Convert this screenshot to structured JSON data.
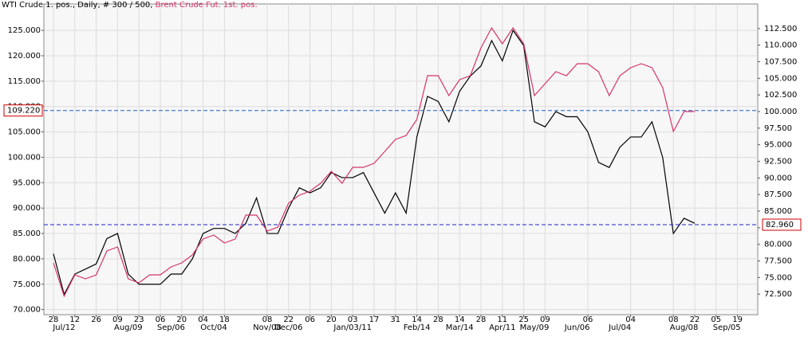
{
  "chart_data": {
    "type": "line",
    "subtitle": ", Daily, # 300 / 500, ",
    "categories": [
      "28",
      null,
      "12",
      null,
      "26",
      null,
      "09",
      null,
      "23",
      null,
      "06",
      null,
      "20",
      null,
      "04",
      null,
      "18",
      null,
      null,
      null,
      "08",
      null,
      "22",
      null,
      "06",
      null,
      "20",
      null,
      "03",
      null,
      "17",
      null,
      "31",
      null,
      "14",
      null,
      "28",
      null,
      "14",
      null,
      "28",
      null,
      "11",
      null,
      "25",
      null,
      "09",
      null,
      null,
      null,
      "06",
      null,
      null,
      null,
      "04",
      null,
      null,
      null,
      "08",
      null,
      "22",
      null,
      "05",
      null,
      "19",
      null
    ],
    "category_groups": [
      null,
      "Jul/12",
      null,
      null,
      null,
      null,
      null,
      "Aug/09",
      null,
      null,
      null,
      "Sep/06",
      null,
      null,
      null,
      "Oct/04",
      null,
      null,
      null,
      null,
      "Nov/08",
      null,
      "Dec/06",
      null,
      null,
      null,
      null,
      null,
      "Jan/03/11",
      null,
      null,
      null,
      null,
      null,
      "Feb/14",
      null,
      null,
      null,
      "Mar/14",
      null,
      null,
      null,
      "Apr/11",
      null,
      null,
      "May/09",
      null,
      null,
      null,
      "Jun/06",
      null,
      null,
      null,
      "Jul/04",
      null,
      null,
      null,
      null,
      null,
      "Aug/08",
      null,
      null,
      null,
      "Sep/05",
      null,
      null
    ],
    "series": [
      {
        "name": "WTI Crude 1. pos.",
        "color": "#000000",
        "axis": "y",
        "values": [
          81,
          73,
          77,
          78,
          79,
          84,
          85,
          77,
          75,
          75,
          75,
          77,
          77,
          80,
          85,
          86,
          86,
          85,
          87,
          92,
          85,
          85,
          90,
          94,
          93,
          94,
          97,
          96,
          96,
          97,
          93,
          89,
          93,
          89,
          104,
          112,
          111,
          107,
          113,
          116,
          118,
          123,
          119,
          125,
          122,
          107,
          106,
          109,
          108,
          108,
          105,
          99,
          98,
          102,
          104,
          104,
          107,
          100,
          85,
          88,
          87,
          null,
          null,
          null,
          null,
          null
        ]
      },
      {
        "name": "Brent Crude Fut. 1st. pos.",
        "color": "#d6336c",
        "axis": "y2",
        "values": [
          77.2,
          72.2,
          75.4,
          74.8,
          75.4,
          79,
          79.6,
          74.8,
          74.2,
          75.4,
          75.4,
          76.6,
          77.2,
          78.4,
          80.8,
          81.4,
          80.2,
          80.8,
          84.4,
          84.4,
          82,
          82.6,
          86.2,
          87.4,
          88,
          89.2,
          91,
          89.2,
          91.6,
          91.6,
          92.2,
          94,
          95.8,
          96.4,
          98.8,
          105.4,
          105.4,
          102.4,
          104.8,
          105.4,
          109.6,
          112.6,
          110.2,
          112.6,
          110.2,
          102.4,
          104.2,
          106,
          105.4,
          107.2,
          107.2,
          106,
          102.4,
          105.4,
          106.6,
          107.2,
          106.6,
          103.6,
          97,
          100,
          100,
          null,
          null,
          null,
          null,
          null
        ]
      }
    ],
    "ylim": [
      69,
      130.2
    ],
    "yticks": [
      {
        "value": 70,
        "label": "70.000"
      },
      {
        "value": 75,
        "label": "75.000"
      },
      {
        "value": 80,
        "label": "80.000"
      },
      {
        "value": 85,
        "label": "85.000"
      },
      {
        "value": 90,
        "label": "90.000"
      },
      {
        "value": 95,
        "label": "95.000"
      },
      {
        "value": 100,
        "label": "100.000"
      },
      {
        "value": 105,
        "label": "105.000"
      },
      {
        "value": 110,
        "label": "110.000"
      },
      {
        "value": 115,
        "label": "115.000"
      },
      {
        "value": 120,
        "label": "120.000"
      },
      {
        "value": 125,
        "label": "125.000"
      }
    ],
    "y2lim": [
      69.4,
      116.2
    ],
    "y2ticks": [
      {
        "value": 72.5,
        "label": "72.500"
      },
      {
        "value": 75,
        "label": "75.000"
      },
      {
        "value": 77.5,
        "label": "77.500"
      },
      {
        "value": 80,
        "label": "80.000"
      },
      {
        "value": 82.5,
        "label": "82.500"
      },
      {
        "value": 85,
        "label": "85.000"
      },
      {
        "value": 87.5,
        "label": "87.500"
      },
      {
        "value": 90,
        "label": "90.000"
      },
      {
        "value": 92.5,
        "label": "92.500"
      },
      {
        "value": 95,
        "label": "95.000"
      },
      {
        "value": 97.5,
        "label": "97.500"
      },
      {
        "value": 100,
        "label": "100.000"
      },
      {
        "value": 102.5,
        "label": "102.500"
      },
      {
        "value": 105,
        "label": "105.000"
      },
      {
        "value": 107.5,
        "label": "107.500"
      },
      {
        "value": 110,
        "label": "110.000"
      },
      {
        "value": 112.5,
        "label": "112.500"
      }
    ],
    "markers": [
      {
        "value": 109.22,
        "label": "109.220",
        "axis": "y",
        "color": "#1f5fbf"
      },
      {
        "value": 82.96,
        "label": "82.960",
        "axis": "y2",
        "color": "#2222cc"
      }
    ],
    "grid": true
  }
}
